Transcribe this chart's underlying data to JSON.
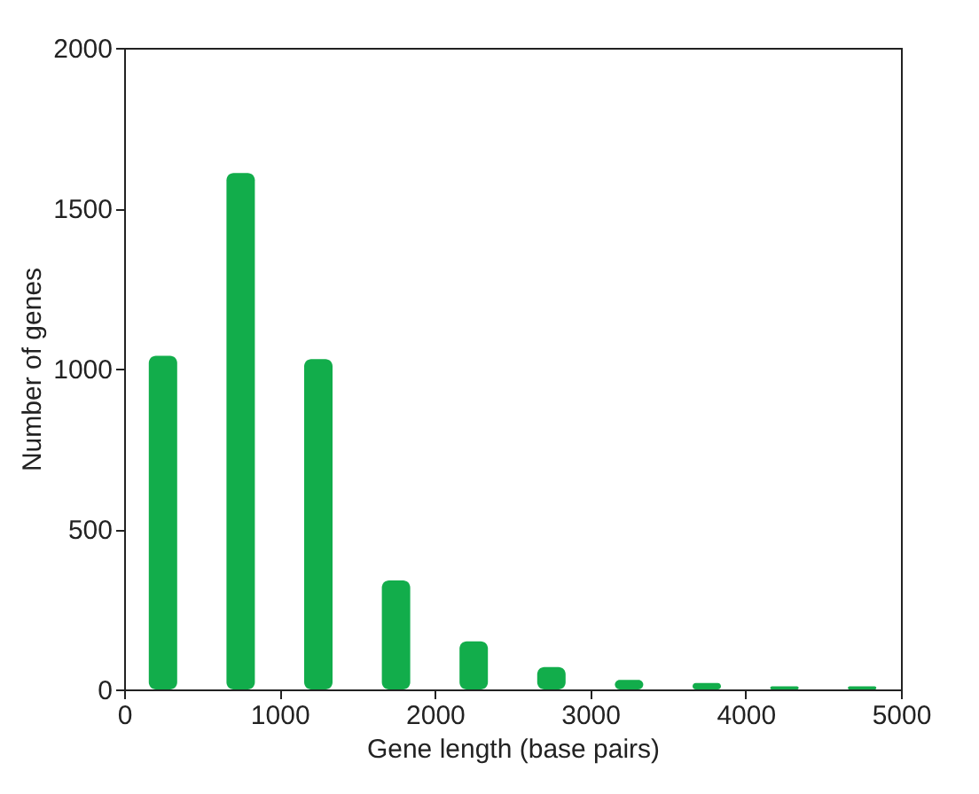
{
  "chart_data": {
    "type": "bar",
    "xlabel": "Gene length (base pairs)",
    "ylabel": "Number of genes",
    "x": [
      250,
      750,
      1250,
      1750,
      2250,
      2750,
      3250,
      3750,
      4250,
      4750
    ],
    "values": [
      1040,
      1610,
      1030,
      340,
      150,
      70,
      30,
      20,
      10,
      10
    ],
    "color": "#12ad4b",
    "xlim": [
      0,
      5000
    ],
    "xticks": [
      0,
      1000,
      2000,
      3000,
      4000,
      5000
    ],
    "ylim": [
      0,
      2000
    ],
    "yticks": [
      0,
      500,
      1000,
      1500,
      2000
    ],
    "grid": false
  }
}
